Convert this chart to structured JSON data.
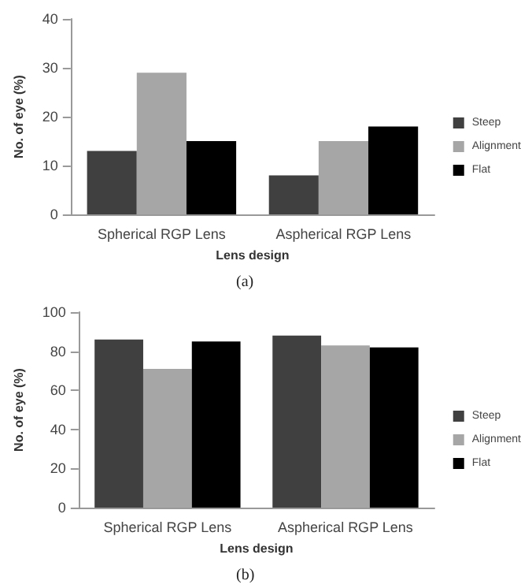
{
  "chart_data": [
    {
      "type": "bar",
      "categories": [
        "Spherical RGP Lens",
        "Aspherical RGP Lens"
      ],
      "series": [
        {
          "name": "Steep",
          "color": "#404040",
          "values": [
            13,
            8
          ]
        },
        {
          "name": "Alignment",
          "color": "#a6a6a6",
          "values": [
            29,
            15
          ]
        },
        {
          "name": "Flat",
          "color": "#000000",
          "values": [
            15,
            18
          ]
        }
      ],
      "ylim": [
        0,
        40
      ],
      "yticks": [
        0,
        10,
        20,
        30,
        40
      ],
      "xlabel": "Lens design",
      "ylabel": "No. of eye (%)",
      "annotations": [
        "(a)"
      ],
      "grid": false,
      "legend": "right"
    },
    {
      "type": "bar",
      "categories": [
        "Spherical RGP Lens",
        "Aspherical RGP Lens"
      ],
      "series": [
        {
          "name": "Steep",
          "color": "#404040",
          "values": [
            86,
            88
          ]
        },
        {
          "name": "Alignment",
          "color": "#a6a6a6",
          "values": [
            71,
            83
          ]
        },
        {
          "name": "Flat",
          "color": "#000000",
          "values": [
            85,
            82
          ]
        }
      ],
      "ylim": [
        0,
        100
      ],
      "yticks": [
        0,
        20,
        40,
        60,
        80,
        100
      ],
      "xlabel": "Lens design",
      "ylabel": "No. of eye (%)",
      "annotations": [
        "(b)"
      ],
      "grid": false,
      "legend": "right"
    }
  ]
}
